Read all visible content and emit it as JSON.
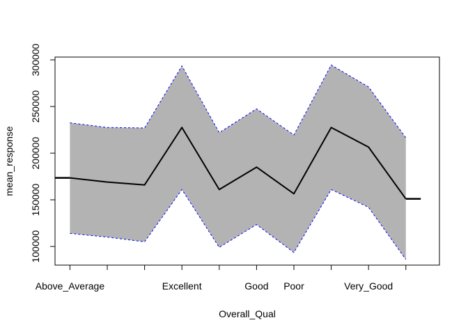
{
  "chart_data": {
    "type": "line",
    "title": "",
    "xlabel": "Overall_Qual",
    "ylabel": "mean_response",
    "x_categories": [
      "",
      "Above_Average",
      "",
      "",
      "Excellent",
      "",
      "Good",
      "Poor",
      "",
      "Very_Good",
      "",
      ""
    ],
    "x_tick_labels": [
      {
        "index": 1,
        "label": "Above_Average"
      },
      {
        "index": 4,
        "label": "Excellent"
      },
      {
        "index": 6,
        "label": "Good"
      },
      {
        "index": 7,
        "label": "Poor"
      },
      {
        "index": 9,
        "label": "Very_Good"
      }
    ],
    "x_ticks": [
      1,
      2,
      3,
      4,
      5,
      6,
      7,
      8,
      9,
      10
    ],
    "xlim": [
      0.6,
      10.9
    ],
    "ylim": [
      80000,
      303000
    ],
    "y_ticks": [
      100000,
      150000,
      200000,
      250000,
      300000
    ],
    "y_tick_labels": [
      "100000",
      "150000",
      "200000",
      "250000",
      "300000"
    ],
    "grid": false,
    "series": [
      {
        "role": "fit",
        "x": [
          1,
          2,
          3,
          4,
          5,
          6,
          7,
          8,
          9,
          10
        ],
        "values": [
          173500,
          169000,
          166000,
          227500,
          161000,
          185000,
          156500,
          227500,
          206500,
          151000
        ],
        "color": "#000000"
      },
      {
        "role": "upper",
        "x": [
          1,
          2,
          3,
          4,
          5,
          6,
          7,
          8,
          9,
          10
        ],
        "values": [
          232500,
          227500,
          227000,
          293500,
          222000,
          247500,
          219500,
          294500,
          271000,
          216500
        ],
        "color": "#0000ff"
      },
      {
        "role": "lower",
        "x": [
          1,
          2,
          3,
          4,
          5,
          6,
          7,
          8,
          9,
          10
        ],
        "values": [
          114000,
          110000,
          105000,
          161000,
          99000,
          123500,
          93500,
          161000,
          142000,
          86000
        ],
        "color": "#0000ff"
      }
    ],
    "end_caps": [
      {
        "x_from": 0.6,
        "x_to": 1,
        "value": 173500
      },
      {
        "x_from": 10,
        "x_to": 10.4,
        "value": 151000
      }
    ],
    "band_fill": "#b3b3b3"
  }
}
